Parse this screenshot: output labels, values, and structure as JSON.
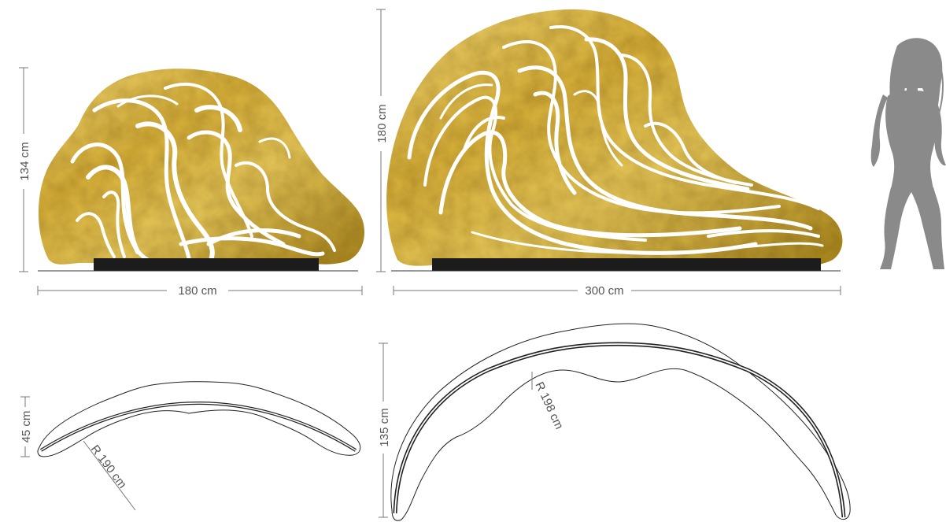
{
  "colors": {
    "gold_light": "#f0d36a",
    "gold_mid": "#d4ac2a",
    "gold_dark": "#9c7a12",
    "base": "#1c1c1c",
    "line": "#777777",
    "text": "#555555",
    "outline": "#222222",
    "silhouette": "#8a8a8a"
  },
  "small_panel": {
    "width_label": "180 cm",
    "height_label": "134 cm",
    "depth_label": "45 cm",
    "radius_label": "R 190 cm"
  },
  "large_panel": {
    "width_label": "300 cm",
    "height_label": "180 cm",
    "depth_label": "135 cm",
    "radius_label": "R 198 cm"
  },
  "figure": {
    "icon": "woman-silhouette-icon"
  }
}
